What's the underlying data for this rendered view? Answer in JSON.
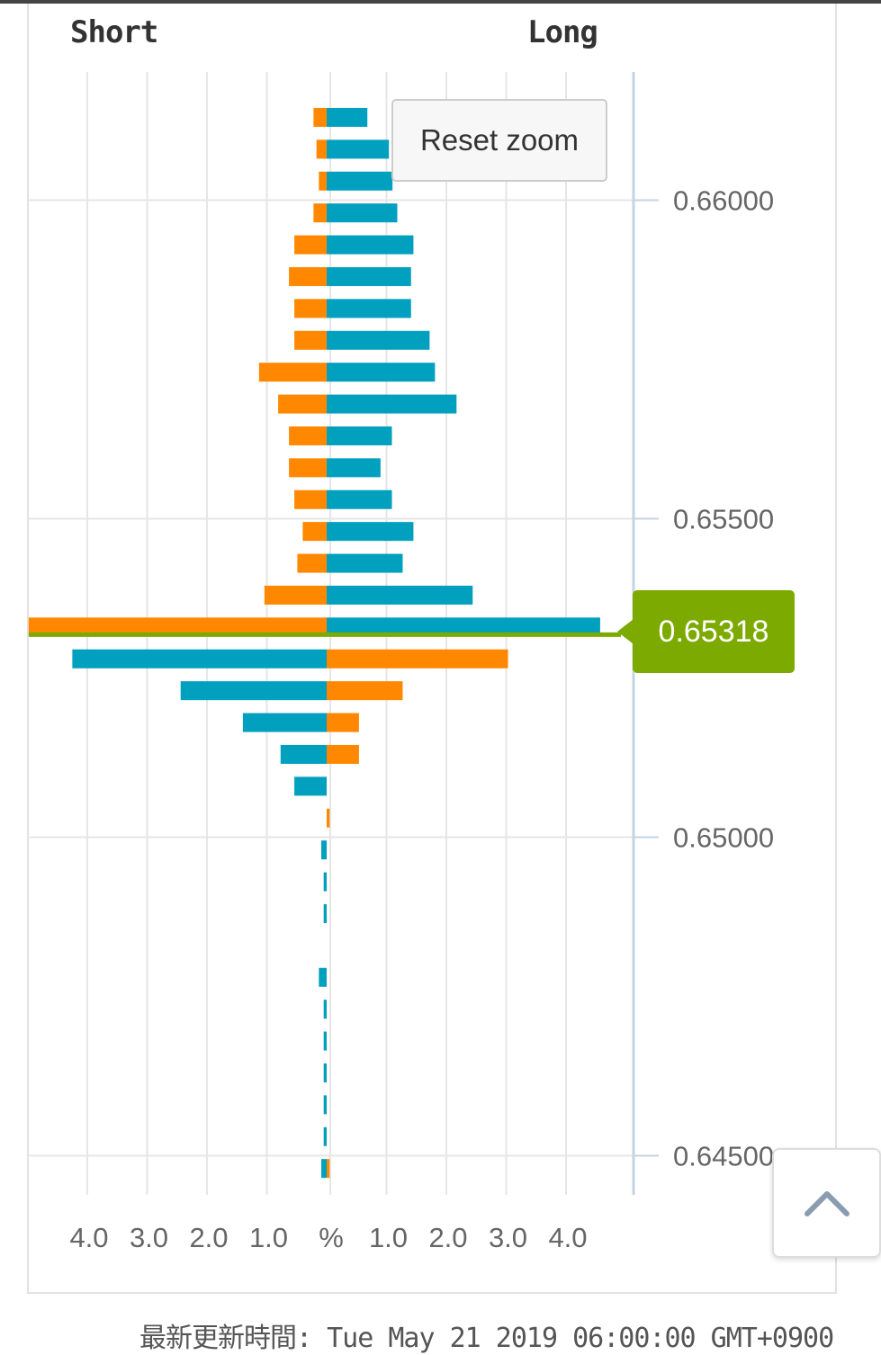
{
  "header": {
    "short_label": "Short",
    "long_label": "Long"
  },
  "reset_zoom_label": "Reset zoom",
  "current_price": "0.65318",
  "footer": {
    "updated_label": "最新更新時間:",
    "updated_value": "Tue May 21 2019 06:00:00 GMT+0900"
  },
  "colors": {
    "long_above": "#00a0be",
    "short_above": "#ff8800",
    "price_line": "#7daa00",
    "grid": "#e6e6e6",
    "axis": "#c5d3e6"
  },
  "chart_data": {
    "type": "bar",
    "orientation": "horizontal",
    "title": "",
    "xlabel": "%",
    "ylabel": "",
    "x_ticks_left": [
      "4.0",
      "3.0",
      "2.0",
      "1.0"
    ],
    "x_center_label": "%",
    "x_ticks_right": [
      "1.0",
      "2.0",
      "3.0",
      "4.0"
    ],
    "xlim": [
      -5.0,
      5.0
    ],
    "y_ticks": [
      "0.66000",
      "0.65500",
      "0.65000",
      "0.64500"
    ],
    "ylim": [
      0.6442,
      0.6622
    ],
    "current_price": 0.65318,
    "grid": true,
    "levels": [
      {
        "price": 0.6613,
        "left": 0.22,
        "left_color": "orange",
        "right": 0.68,
        "right_color": "teal"
      },
      {
        "price": 0.6608,
        "left": 0.17,
        "left_color": "orange",
        "right": 1.04,
        "right_color": "teal"
      },
      {
        "price": 0.6603,
        "left": 0.13,
        "left_color": "orange",
        "right": 1.1,
        "right_color": "teal"
      },
      {
        "price": 0.6598,
        "left": 0.22,
        "left_color": "orange",
        "right": 1.18,
        "right_color": "teal"
      },
      {
        "price": 0.6593,
        "left": 0.54,
        "left_color": "orange",
        "right": 1.45,
        "right_color": "teal"
      },
      {
        "price": 0.6588,
        "left": 0.63,
        "left_color": "orange",
        "right": 1.41,
        "right_color": "teal"
      },
      {
        "price": 0.6583,
        "left": 0.54,
        "left_color": "orange",
        "right": 1.41,
        "right_color": "teal"
      },
      {
        "price": 0.6578,
        "left": 0.54,
        "left_color": "orange",
        "right": 1.72,
        "right_color": "teal"
      },
      {
        "price": 0.6573,
        "left": 1.13,
        "left_color": "orange",
        "right": 1.81,
        "right_color": "teal"
      },
      {
        "price": 0.6568,
        "left": 0.81,
        "left_color": "orange",
        "right": 2.17,
        "right_color": "teal"
      },
      {
        "price": 0.6563,
        "left": 0.63,
        "left_color": "orange",
        "right": 1.09,
        "right_color": "teal"
      },
      {
        "price": 0.6558,
        "left": 0.63,
        "left_color": "orange",
        "right": 0.9,
        "right_color": "teal"
      },
      {
        "price": 0.6553,
        "left": 0.54,
        "left_color": "orange",
        "right": 1.09,
        "right_color": "teal"
      },
      {
        "price": 0.6548,
        "left": 0.4,
        "left_color": "orange",
        "right": 1.45,
        "right_color": "teal"
      },
      {
        "price": 0.6543,
        "left": 0.49,
        "left_color": "orange",
        "right": 1.27,
        "right_color": "teal"
      },
      {
        "price": 0.6538,
        "left": 1.04,
        "left_color": "orange",
        "right": 2.44,
        "right_color": "teal"
      },
      {
        "price": 0.6533,
        "left": 4.98,
        "left_color": "orange",
        "right": 4.57,
        "right_color": "teal"
      },
      {
        "price": 0.6528,
        "left": 4.25,
        "left_color": "teal",
        "right": 3.03,
        "right_color": "orange"
      },
      {
        "price": 0.6523,
        "left": 2.44,
        "left_color": "teal",
        "right": 1.27,
        "right_color": "orange"
      },
      {
        "price": 0.6518,
        "left": 1.4,
        "left_color": "teal",
        "right": 0.54,
        "right_color": "orange"
      },
      {
        "price": 0.6513,
        "left": 0.77,
        "left_color": "teal",
        "right": 0.54,
        "right_color": "orange"
      },
      {
        "price": 0.6508,
        "left": 0.54,
        "left_color": "teal",
        "right": 0.0,
        "right_color": "orange"
      },
      {
        "price": 0.6503,
        "left": 0.0,
        "left_color": "teal",
        "right": 0.05,
        "right_color": "orange"
      },
      {
        "price": 0.6498,
        "left": 0.09,
        "left_color": "teal",
        "right": 0.0,
        "right_color": "orange"
      },
      {
        "price": 0.6493,
        "left": 0.05,
        "left_color": "teal",
        "right": 0.0,
        "right_color": "orange"
      },
      {
        "price": 0.6488,
        "left": 0.05,
        "left_color": "teal",
        "right": 0.0,
        "right_color": "orange"
      },
      {
        "price": 0.6478,
        "left": 0.13,
        "left_color": "teal",
        "right": 0.0,
        "right_color": "orange"
      },
      {
        "price": 0.6473,
        "left": 0.05,
        "left_color": "teal",
        "right": 0.0,
        "right_color": "orange"
      },
      {
        "price": 0.6468,
        "left": 0.05,
        "left_color": "teal",
        "right": 0.0,
        "right_color": "orange"
      },
      {
        "price": 0.6463,
        "left": 0.05,
        "left_color": "teal",
        "right": 0.0,
        "right_color": "orange"
      },
      {
        "price": 0.6458,
        "left": 0.05,
        "left_color": "teal",
        "right": 0.0,
        "right_color": "orange"
      },
      {
        "price": 0.6453,
        "left": 0.05,
        "left_color": "teal",
        "right": 0.0,
        "right_color": "orange"
      },
      {
        "price": 0.6448,
        "left": 0.09,
        "left_color": "teal",
        "right": 0.05,
        "right_color": "orange"
      }
    ]
  }
}
